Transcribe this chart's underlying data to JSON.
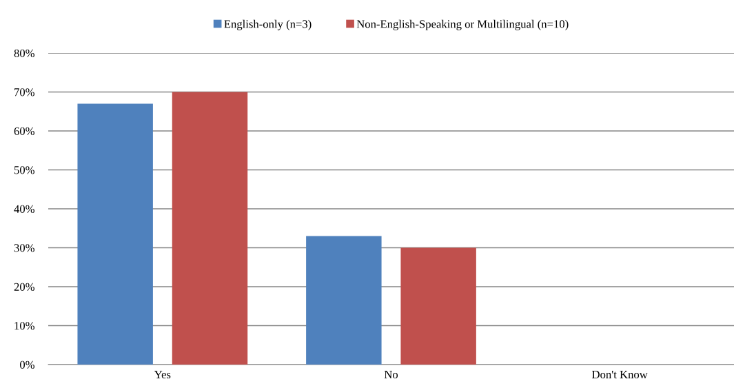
{
  "chart_data": {
    "type": "bar",
    "categories": [
      "Yes",
      "No",
      "Don't Know"
    ],
    "series": [
      {
        "name": "English-only (n=3)",
        "color": "#4f81bd",
        "values": [
          67,
          33,
          0
        ]
      },
      {
        "name": "Non-English-Speaking or Multilingual (n=10)",
        "color": "#c0504d",
        "values": [
          70,
          30,
          0
        ]
      }
    ],
    "ylim": [
      0,
      80
    ],
    "yticks": [
      {
        "value": 0,
        "label": "0%"
      },
      {
        "value": 10,
        "label": "10%"
      },
      {
        "value": 20,
        "label": "20%"
      },
      {
        "value": 30,
        "label": "30%"
      },
      {
        "value": 40,
        "label": "40%"
      },
      {
        "value": 50,
        "label": "50%"
      },
      {
        "value": 60,
        "label": "60%"
      },
      {
        "value": 70,
        "label": "70%"
      },
      {
        "value": 80,
        "label": "80%"
      }
    ],
    "grid": "y",
    "legend": "top"
  }
}
